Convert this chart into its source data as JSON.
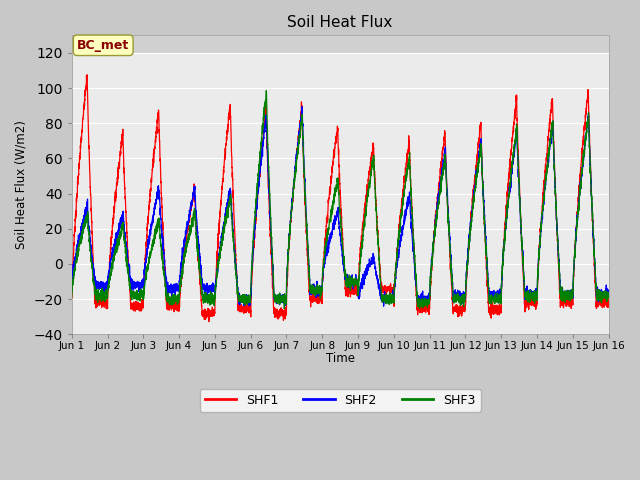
{
  "title": "Soil Heat Flux",
  "ylabel": "Soil Heat Flux (W/m2)",
  "xlabel": "Time",
  "ylim": [
    -40,
    130
  ],
  "xlim": [
    0,
    15
  ],
  "fig_facecolor": "#c8c8c8",
  "ax_facecolor": "#dcdcdc",
  "grid_color": "white",
  "colors": {
    "SHF1": "red",
    "SHF2": "blue",
    "SHF3": "green"
  },
  "annotation_text": "BC_met",
  "xtick_labels": [
    "Jun 1",
    "Jun 2",
    "Jun 3",
    "Jun 4",
    "Jun 5",
    "Jun 6",
    "Jun 7",
    "Jun 8",
    "Jun 9",
    "Jun 10",
    "Jun 11",
    "Jun 12",
    "Jun 13",
    "Jun 14",
    "Jun 15",
    "Jun 16"
  ],
  "ytick_values": [
    -40,
    -20,
    0,
    20,
    40,
    60,
    80,
    100,
    120
  ],
  "legend_labels": [
    "SHF1",
    "SHF2",
    "SHF3"
  ]
}
